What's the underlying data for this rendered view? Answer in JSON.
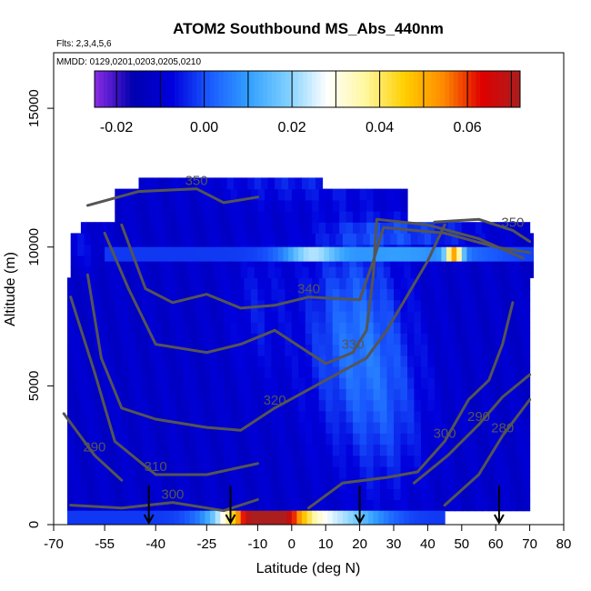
{
  "chart_data": {
    "type": "heatmap",
    "title": "ATOM2 Southbound MS_Abs_440nm",
    "notes": [
      "Flts: 2,3,4,5,6",
      "MMDD: 0129,0201,0203,0205,0210"
    ],
    "xlabel": "Latitude (deg N)",
    "ylabel": "Altitude (m)",
    "xlim": [
      -70,
      80
    ],
    "ylim": [
      0,
      17000
    ],
    "x_ticks": [
      -70,
      -55,
      -40,
      -25,
      -10,
      0,
      10,
      20,
      30,
      40,
      50,
      60,
      70,
      80
    ],
    "y_ticks": [
      0,
      5000,
      10000,
      15000
    ],
    "colorbar": {
      "range": [
        -0.025,
        0.072
      ],
      "ticks": [
        -0.02,
        0.0,
        0.02,
        0.04,
        0.06
      ],
      "tick_labels": [
        "-0.02",
        "0.00",
        "0.02",
        "0.04",
        "0.06"
      ],
      "colors": [
        "#8a2be2",
        "#0000b0",
        "#0000dd",
        "#1a5cff",
        "#33a0ff",
        "#7fd0ff",
        "#ffffff",
        "#fff7a0",
        "#ffd000",
        "#ff8c00",
        "#e00000",
        "#aa1e1e"
      ]
    },
    "contours": [
      {
        "level": "280",
        "points": [
          [
            45,
            700
          ],
          [
            55,
            1800
          ],
          [
            62,
            3200
          ],
          [
            70,
            4500
          ]
        ]
      },
      {
        "level": "290",
        "points": [
          [
            -67,
            4000
          ],
          [
            -58,
            2500
          ],
          [
            -50,
            1600
          ]
        ]
      },
      {
        "level": "290",
        "points": [
          [
            36,
            1500
          ],
          [
            46,
            2500
          ],
          [
            55,
            3600
          ],
          [
            62,
            4600
          ],
          [
            70,
            5400
          ]
        ]
      },
      {
        "level": "300",
        "points": [
          [
            -65,
            700
          ],
          [
            -50,
            600
          ],
          [
            -35,
            800
          ],
          [
            -20,
            500
          ],
          [
            -10,
            900
          ]
        ]
      },
      {
        "level": "300",
        "points": [
          [
            5,
            600
          ],
          [
            15,
            1500
          ],
          [
            28,
            1700
          ],
          [
            37,
            1900
          ],
          [
            45,
            3000
          ],
          [
            52,
            4500
          ],
          [
            58,
            5200
          ],
          [
            62,
            6500
          ],
          [
            65,
            8000
          ]
        ]
      },
      {
        "level": "310",
        "points": [
          [
            -65,
            8200
          ],
          [
            -58,
            5500
          ],
          [
            -52,
            3000
          ],
          [
            -40,
            1800
          ],
          [
            -25,
            1800
          ],
          [
            -10,
            2200
          ]
        ]
      },
      {
        "level": "320",
        "points": [
          [
            -60,
            9000
          ],
          [
            -56,
            6000
          ],
          [
            -50,
            4200
          ],
          [
            -40,
            3800
          ],
          [
            -25,
            3500
          ],
          [
            -15,
            3400
          ],
          [
            -5,
            4200
          ],
          [
            10,
            5200
          ],
          [
            22,
            6000
          ],
          [
            28,
            7000
          ],
          [
            40,
            9500
          ],
          [
            45,
            10800
          ]
        ]
      },
      {
        "level": "330",
        "points": [
          [
            -55,
            10500
          ],
          [
            -48,
            8500
          ],
          [
            -40,
            6500
          ],
          [
            -25,
            6200
          ],
          [
            -15,
            6500
          ],
          [
            -5,
            7000
          ],
          [
            10,
            5800
          ],
          [
            18,
            6200
          ],
          [
            22,
            7000
          ],
          [
            24,
            9000
          ],
          [
            25,
            11000
          ],
          [
            40,
            10800
          ],
          [
            55,
            10300
          ],
          [
            68,
            9600
          ]
        ]
      },
      {
        "level": "340",
        "points": [
          [
            -50,
            10800
          ],
          [
            -43,
            8500
          ],
          [
            -35,
            8000
          ],
          [
            -25,
            8300
          ],
          [
            -15,
            7800
          ],
          [
            -5,
            7900
          ],
          [
            5,
            8200
          ],
          [
            20,
            8100
          ],
          [
            24,
            9500
          ],
          [
            27,
            10700
          ],
          [
            45,
            10500
          ],
          [
            60,
            10000
          ],
          [
            70,
            9800
          ]
        ]
      },
      {
        "level": "350",
        "points": [
          [
            -60,
            11500
          ],
          [
            -45,
            12000
          ],
          [
            -28,
            12100
          ],
          [
            -20,
            11600
          ],
          [
            -10,
            11800
          ]
        ]
      },
      {
        "level": "350",
        "points": [
          [
            42,
            10900
          ],
          [
            55,
            11000
          ],
          [
            65,
            10600
          ],
          [
            70,
            10200
          ]
        ]
      }
    ],
    "arrows_x": [
      -42,
      -18,
      20,
      61
    ]
  }
}
